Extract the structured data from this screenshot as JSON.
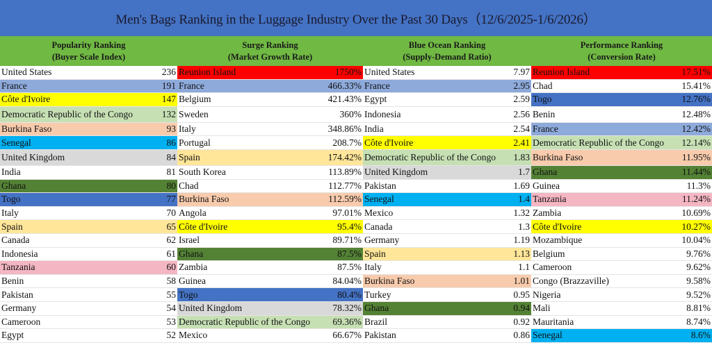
{
  "title": "Men's Bags Ranking in the Luggage Industry Over the Past 30 Days（12/6/2025-1/6/2026）",
  "colors": {
    "title_bg": "#4472c4",
    "header_bg": "#70b943",
    "red": "#ff0000",
    "periwinkle": "#8eaadb",
    "yellow": "#ffff00",
    "light_green": "#c6e0b4",
    "peach": "#f8cbad",
    "cyan": "#00b0f0",
    "gray": "#d9d9d9",
    "dark_green": "#548235",
    "blue": "#4472c4",
    "light_yellow": "#ffe699",
    "pink": "#f4b6c2",
    "white": "#ffffff"
  },
  "columns": [
    {
      "heading": "Popularity Ranking",
      "subheading": "(Buyer Scale Index)",
      "rows": [
        {
          "name": "United States",
          "value": "236",
          "color": "white"
        },
        {
          "name": "France",
          "value": "191",
          "color": "periwinkle"
        },
        {
          "name": "Côte d'Ivoire",
          "value": "147",
          "color": "yellow"
        },
        {
          "name": "Democratic Republic of the Congo",
          "value": "132",
          "color": "light_green"
        },
        {
          "name": "Burkina Faso",
          "value": "93",
          "color": "peach"
        },
        {
          "name": "Senegal",
          "value": "86",
          "color": "cyan"
        },
        {
          "name": "United Kingdom",
          "value": "84",
          "color": "gray"
        },
        {
          "name": "India",
          "value": "81",
          "color": "white"
        },
        {
          "name": "Ghana",
          "value": "80",
          "color": "dark_green"
        },
        {
          "name": "Togo",
          "value": "77",
          "color": "blue"
        },
        {
          "name": "Italy",
          "value": "70",
          "color": "white"
        },
        {
          "name": "Spain",
          "value": "65",
          "color": "light_yellow"
        },
        {
          "name": "Canada",
          "value": "62",
          "color": "white"
        },
        {
          "name": "Indonesia",
          "value": "61",
          "color": "white"
        },
        {
          "name": "Tanzania",
          "value": "60",
          "color": "pink"
        },
        {
          "name": "Benin",
          "value": "58",
          "color": "white"
        },
        {
          "name": "Pakistan",
          "value": "55",
          "color": "white"
        },
        {
          "name": "Germany",
          "value": "54",
          "color": "white"
        },
        {
          "name": "Cameroon",
          "value": "53",
          "color": "white"
        },
        {
          "name": "Egypt",
          "value": "52",
          "color": "white"
        }
      ]
    },
    {
      "heading": "Surge Ranking",
      "subheading": "(Market Growth Rate)",
      "rows": [
        {
          "name": "Reunion Island",
          "value": "1750%",
          "color": "red"
        },
        {
          "name": "France",
          "value": "466.33%",
          "color": "periwinkle"
        },
        {
          "name": "Belgium",
          "value": "421.43%",
          "color": "white"
        },
        {
          "name": "Sweden",
          "value": "360%",
          "color": "white"
        },
        {
          "name": "Italy",
          "value": "348.86%",
          "color": "white"
        },
        {
          "name": "Portugal",
          "value": "208.7%",
          "color": "white"
        },
        {
          "name": "Spain",
          "value": "174.42%",
          "color": "light_yellow"
        },
        {
          "name": "South Korea",
          "value": "113.89%",
          "color": "white"
        },
        {
          "name": "Chad",
          "value": "112.77%",
          "color": "white"
        },
        {
          "name": "Burkina Faso",
          "value": "112.59%",
          "color": "peach"
        },
        {
          "name": "Angola",
          "value": "97.01%",
          "color": "white"
        },
        {
          "name": "Côte d'Ivoire",
          "value": "95.4%",
          "color": "yellow"
        },
        {
          "name": "Israel",
          "value": "89.71%",
          "color": "white"
        },
        {
          "name": "Ghana",
          "value": "87.5%",
          "color": "dark_green"
        },
        {
          "name": "Zambia",
          "value": "87.5%",
          "color": "white"
        },
        {
          "name": "Guinea",
          "value": "84.04%",
          "color": "white"
        },
        {
          "name": "Togo",
          "value": "80.4%",
          "color": "blue"
        },
        {
          "name": "United Kingdom",
          "value": "78.32%",
          "color": "gray"
        },
        {
          "name": "Democratic Republic of the Congo",
          "value": "69.36%",
          "color": "light_green"
        },
        {
          "name": "Mexico",
          "value": "66.67%",
          "color": "white"
        }
      ]
    },
    {
      "heading": "Blue Ocean Ranking",
      "subheading": "(Supply-Demand Ratio)",
      "rows": [
        {
          "name": "United States",
          "value": "7.97",
          "color": "white"
        },
        {
          "name": "France",
          "value": "2.95",
          "color": "periwinkle"
        },
        {
          "name": "Egypt",
          "value": "2.59",
          "color": "white"
        },
        {
          "name": "Indonesia",
          "value": "2.56",
          "color": "white"
        },
        {
          "name": "India",
          "value": "2.54",
          "color": "white"
        },
        {
          "name": "Côte d'Ivoire",
          "value": "2.41",
          "color": "yellow"
        },
        {
          "name": "Democratic Republic of the Congo",
          "value": "1.83",
          "color": "light_green"
        },
        {
          "name": "United Kingdom",
          "value": "1.7",
          "color": "gray"
        },
        {
          "name": "Pakistan",
          "value": "1.69",
          "color": "white"
        },
        {
          "name": "Senegal",
          "value": "1.4",
          "color": "cyan"
        },
        {
          "name": "Mexico",
          "value": "1.32",
          "color": "white"
        },
        {
          "name": "Canada",
          "value": "1.3",
          "color": "white"
        },
        {
          "name": "Germany",
          "value": "1.19",
          "color": "white"
        },
        {
          "name": "Spain",
          "value": "1.13",
          "color": "light_yellow"
        },
        {
          "name": "Italy",
          "value": "1.1",
          "color": "white"
        },
        {
          "name": "Burkina Faso",
          "value": "1.01",
          "color": "peach"
        },
        {
          "name": "Turkey",
          "value": "0.95",
          "color": "white"
        },
        {
          "name": "Ghana",
          "value": "0.94",
          "color": "dark_green"
        },
        {
          "name": "Brazil",
          "value": "0.92",
          "color": "white"
        },
        {
          "name": "Pakistan",
          "value": "0.86",
          "color": "white"
        }
      ]
    },
    {
      "heading": "Performance Ranking",
      "subheading": "(Conversion Rate)",
      "rows": [
        {
          "name": "Reunion Island",
          "value": "17.51%",
          "color": "red"
        },
        {
          "name": "Chad",
          "value": "15.41%",
          "color": "white"
        },
        {
          "name": "Togo",
          "value": "12.76%",
          "color": "blue"
        },
        {
          "name": "Benin",
          "value": "12.48%",
          "color": "white"
        },
        {
          "name": "France",
          "value": "12.42%",
          "color": "periwinkle"
        },
        {
          "name": "Democratic Republic of the Congo",
          "value": "12.14%",
          "color": "light_green"
        },
        {
          "name": "Burkina Faso",
          "value": "11.95%",
          "color": "peach"
        },
        {
          "name": "Ghana",
          "value": "11.44%",
          "color": "dark_green"
        },
        {
          "name": "Guinea",
          "value": "11.3%",
          "color": "white"
        },
        {
          "name": "Tanzania",
          "value": "11.24%",
          "color": "pink"
        },
        {
          "name": "Zambia",
          "value": "10.69%",
          "color": "white"
        },
        {
          "name": "Côte d'Ivoire",
          "value": "10.27%",
          "color": "yellow"
        },
        {
          "name": "Mozambique",
          "value": "10.04%",
          "color": "white"
        },
        {
          "name": "Belgium",
          "value": "9.76%",
          "color": "white"
        },
        {
          "name": "Cameroon",
          "value": "9.62%",
          "color": "white"
        },
        {
          "name": "Congo (Brazzaville)",
          "value": "9.58%",
          "color": "white"
        },
        {
          "name": "Nigeria",
          "value": "9.52%",
          "color": "white"
        },
        {
          "name": "Mali",
          "value": "8.81%",
          "color": "white"
        },
        {
          "name": "Mauritania",
          "value": "8.74%",
          "color": "white"
        },
        {
          "name": "Senegal",
          "value": "8.6%",
          "color": "cyan"
        }
      ]
    }
  ]
}
